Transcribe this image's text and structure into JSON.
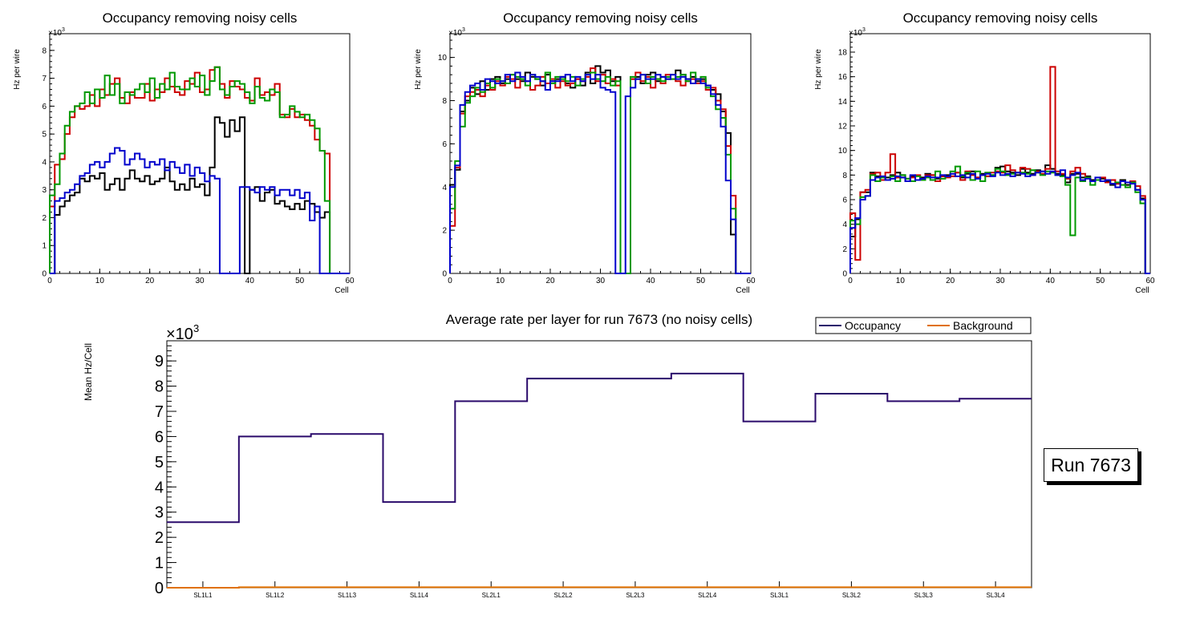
{
  "run_label": "Run 7673",
  "chart_data": [
    {
      "type": "histogram",
      "title": "Occupancy removing noisy cells",
      "xlabel": "Cell",
      "ylabel": "Hz per wire",
      "exponent": "×10^3",
      "exp_base": "×10",
      "exp_power": "3",
      "xlim": [
        0,
        60
      ],
      "ylim": [
        0,
        8.6
      ],
      "xticks": [
        0,
        10,
        20,
        30,
        40,
        50,
        60
      ],
      "yticks": [
        0,
        1,
        2,
        3,
        4,
        5,
        6,
        7,
        8
      ],
      "bin_width": 1,
      "series": [
        {
          "name": "layer1",
          "color": "#000000",
          "values": [
            0,
            2.1,
            2.4,
            2.6,
            2.8,
            2.9,
            3.4,
            3.3,
            3.5,
            3.4,
            3.6,
            3.0,
            3.2,
            3.4,
            3.0,
            3.4,
            3.7,
            3.4,
            3.3,
            3.5,
            3.2,
            3.3,
            3.4,
            3.8,
            3.3,
            3.0,
            3.2,
            3.0,
            3.4,
            3.1,
            3.2,
            2.8,
            3.8,
            5.6,
            5.4,
            4.9,
            5.5,
            5.1,
            5.6,
            0,
            3.0,
            3.1,
            2.6,
            2.9,
            3.0,
            2.5,
            2.6,
            2.4,
            2.3,
            2.5,
            2.3,
            2.6,
            2.5,
            2.2,
            2.0,
            2.2,
            0,
            0,
            0,
            0
          ]
        },
        {
          "name": "layer2",
          "color": "#cc0000",
          "values": [
            2.4,
            3.9,
            4.1,
            5.0,
            5.6,
            6.0,
            5.9,
            6.0,
            6.4,
            6.0,
            6.6,
            6.4,
            6.8,
            7.0,
            6.3,
            6.1,
            6.5,
            6.3,
            6.3,
            6.8,
            6.2,
            6.6,
            6.5,
            7.0,
            6.7,
            6.5,
            6.4,
            6.9,
            6.8,
            7.2,
            6.5,
            6.6,
            7.3,
            7.4,
            6.8,
            6.3,
            6.9,
            6.7,
            6.6,
            6.3,
            6.2,
            7.0,
            6.4,
            6.5,
            6.4,
            6.8,
            5.7,
            5.6,
            5.9,
            5.6,
            5.7,
            5.5,
            5.3,
            4.8,
            4.4,
            4.3,
            0,
            0,
            0,
            0
          ]
        },
        {
          "name": "layer3",
          "color": "#009900",
          "values": [
            2.8,
            3.2,
            4.3,
            5.3,
            5.8,
            6.0,
            6.1,
            6.5,
            6.1,
            6.6,
            6.3,
            7.1,
            6.4,
            6.8,
            6.1,
            6.5,
            6.4,
            6.6,
            6.8,
            6.5,
            7.0,
            6.3,
            6.8,
            6.6,
            7.2,
            6.7,
            6.6,
            6.6,
            7.0,
            6.7,
            7.1,
            6.4,
            6.9,
            7.4,
            6.6,
            6.4,
            6.7,
            6.9,
            6.8,
            6.5,
            6.1,
            6.7,
            6.3,
            6.2,
            6.6,
            6.5,
            5.6,
            5.7,
            6.0,
            5.8,
            5.6,
            5.7,
            5.5,
            5.2,
            4.4,
            2.6,
            0,
            0,
            0,
            0
          ]
        },
        {
          "name": "layer4",
          "color": "#0000cc",
          "values": [
            0,
            2.6,
            2.7,
            2.9,
            3.0,
            3.2,
            3.5,
            3.6,
            3.9,
            4.0,
            3.8,
            4.0,
            4.3,
            4.5,
            4.4,
            3.9,
            4.1,
            4.3,
            4.1,
            3.8,
            4.0,
            3.9,
            4.1,
            3.7,
            4.0,
            3.8,
            3.6,
            3.9,
            3.5,
            3.8,
            3.6,
            3.3,
            3.5,
            3.4,
            0,
            0,
            0,
            0,
            3.1,
            3.1,
            3.0,
            2.9,
            3.1,
            3.0,
            3.1,
            2.8,
            3.0,
            3.0,
            2.8,
            3.0,
            2.7,
            2.9,
            1.9,
            2.4,
            0,
            0,
            0,
            0,
            0,
            0
          ]
        }
      ]
    },
    {
      "type": "histogram",
      "title": "Occupancy removing noisy cells",
      "xlabel": "Cell",
      "ylabel": "Hz per wire",
      "exponent": "×10^3",
      "exp_base": "×10",
      "exp_power": "3",
      "xlim": [
        0,
        60
      ],
      "ylim": [
        0,
        11.1
      ],
      "xticks": [
        0,
        10,
        20,
        30,
        40,
        50,
        60
      ],
      "yticks": [
        0,
        2,
        4,
        6,
        8,
        10
      ],
      "bin_width": 1,
      "series": [
        {
          "name": "layer1",
          "color": "#000000",
          "values": [
            4.1,
            4.8,
            7.5,
            8.0,
            8.6,
            8.3,
            8.9,
            8.5,
            9.0,
            9.1,
            8.8,
            9.0,
            9.2,
            9.0,
            8.9,
            9.3,
            9.1,
            9.0,
            8.7,
            9.2,
            8.9,
            9.0,
            9.1,
            8.8,
            8.6,
            9.0,
            8.7,
            9.3,
            8.8,
            9.6,
            9.3,
            9.4,
            8.9,
            9.1,
            0,
            0,
            9.0,
            9.1,
            8.8,
            9.2,
            9.3,
            8.9,
            9.1,
            9.0,
            9.2,
            9.4,
            9.2,
            9.0,
            9.1,
            8.9,
            9.0,
            8.7,
            8.5,
            8.3,
            7.5,
            6.5,
            1.8,
            0,
            0,
            0
          ]
        },
        {
          "name": "layer2",
          "color": "#cc0000",
          "values": [
            2.2,
            4.9,
            7.4,
            8.2,
            8.4,
            8.5,
            8.2,
            8.7,
            8.5,
            8.9,
            8.7,
            9.1,
            9.0,
            8.6,
            9.0,
            8.9,
            8.5,
            8.7,
            9.1,
            8.8,
            9.0,
            8.6,
            8.9,
            8.7,
            8.8,
            9.0,
            8.9,
            9.1,
            9.5,
            8.9,
            9.2,
            8.8,
            9.0,
            8.7,
            0,
            0,
            9.0,
            9.3,
            8.9,
            9.1,
            8.6,
            9.0,
            8.8,
            9.2,
            9.0,
            8.9,
            8.7,
            8.9,
            9.0,
            8.8,
            8.9,
            8.5,
            8.6,
            8.0,
            7.6,
            5.9,
            3.6,
            0,
            0,
            0
          ]
        },
        {
          "name": "layer3",
          "color": "#009900",
          "values": [
            3.0,
            5.2,
            6.8,
            7.9,
            8.2,
            8.6,
            8.4,
            8.8,
            8.6,
            9.0,
            8.9,
            8.8,
            9.2,
            9.1,
            9.0,
            8.7,
            9.2,
            9.0,
            8.9,
            9.3,
            8.8,
            9.1,
            9.0,
            8.9,
            9.1,
            8.7,
            9.0,
            9.2,
            9.3,
            9.0,
            8.9,
            9.1,
            8.7,
            8.9,
            0,
            0,
            9.1,
            9.0,
            9.2,
            8.8,
            9.1,
            9.0,
            8.9,
            9.1,
            9.0,
            9.1,
            9.2,
            8.9,
            9.3,
            9.0,
            9.1,
            8.6,
            8.2,
            7.6,
            7.2,
            5.5,
            3.0,
            0,
            0,
            0
          ]
        },
        {
          "name": "layer4",
          "color": "#0000cc",
          "values": [
            4.0,
            5.0,
            7.8,
            8.4,
            8.7,
            8.8,
            8.5,
            9.0,
            8.9,
            8.8,
            8.9,
            9.2,
            8.9,
            9.3,
            9.1,
            8.9,
            9.2,
            9.1,
            8.9,
            8.5,
            8.9,
            8.9,
            9.1,
            9.2,
            8.9,
            9.1,
            8.9,
            9.2,
            9.0,
            9.2,
            8.6,
            8.5,
            8.4,
            0,
            0,
            8.2,
            8.6,
            9.0,
            9.2,
            9.0,
            9.0,
            9.2,
            9.1,
            9.0,
            9.2,
            9.0,
            9.1,
            9.0,
            8.8,
            9.0,
            8.8,
            8.7,
            8.3,
            7.8,
            6.8,
            4.3,
            2.5,
            0,
            0,
            0
          ]
        }
      ]
    },
    {
      "type": "histogram",
      "title": "Occupancy removing noisy cells",
      "xlabel": "Cell",
      "ylabel": "Hz per wire",
      "exponent": "×10^3",
      "exp_base": "×10",
      "exp_power": "3",
      "xlim": [
        0,
        60
      ],
      "ylim": [
        0,
        19.5
      ],
      "xticks": [
        0,
        10,
        20,
        30,
        40,
        50,
        60
      ],
      "yticks": [
        0,
        2,
        4,
        6,
        8,
        10,
        12,
        14,
        16,
        18
      ],
      "bin_width": 1,
      "series": [
        {
          "name": "layer1",
          "color": "#000000",
          "values": [
            3.0,
            4.4,
            6.6,
            6.6,
            8.2,
            7.9,
            7.6,
            7.8,
            8.0,
            8.2,
            8.0,
            7.7,
            7.9,
            7.6,
            7.8,
            8.1,
            8.0,
            7.7,
            7.9,
            8.0,
            7.9,
            8.2,
            7.8,
            8.1,
            8.3,
            7.8,
            8.1,
            7.9,
            8.0,
            8.6,
            8.7,
            8.3,
            8.2,
            8.0,
            8.5,
            8.2,
            8.1,
            8.4,
            8.3,
            8.8,
            8.5,
            8.1,
            8.0,
            7.4,
            8.1,
            8.1,
            7.8,
            7.9,
            7.6,
            7.6,
            7.7,
            7.5,
            7.2,
            7.3,
            7.6,
            7.2,
            7.4,
            6.8,
            6.1,
            0
          ]
        },
        {
          "name": "layer2",
          "color": "#cc0000",
          "values": [
            4.9,
            1.1,
            6.6,
            6.8,
            8.1,
            8.2,
            7.6,
            8.2,
            9.7,
            7.8,
            7.8,
            7.5,
            7.8,
            8.0,
            7.7,
            8.0,
            8.0,
            7.5,
            7.9,
            7.8,
            7.9,
            8.2,
            7.6,
            8.3,
            8.0,
            7.8,
            8.0,
            7.9,
            8.2,
            8.3,
            8.2,
            8.8,
            8.4,
            8.2,
            8.6,
            8.5,
            8.0,
            8.3,
            8.1,
            8.5,
            16.8,
            8.3,
            8.1,
            7.7,
            8.3,
            8.6,
            8.1,
            7.8,
            7.5,
            7.6,
            7.8,
            7.4,
            7.6,
            7.3,
            7.5,
            7.4,
            7.5,
            7.1,
            6.3,
            0
          ]
        },
        {
          "name": "layer3",
          "color": "#009900",
          "values": [
            4.3,
            4.0,
            6.2,
            6.3,
            8.0,
            7.5,
            7.8,
            7.6,
            7.9,
            7.5,
            8.0,
            7.7,
            7.5,
            7.9,
            7.6,
            7.8,
            7.6,
            8.3,
            7.7,
            7.9,
            8.3,
            8.7,
            7.9,
            8.2,
            7.6,
            8.3,
            7.5,
            8.2,
            8.0,
            8.5,
            8.3,
            8.0,
            8.1,
            8.2,
            8.2,
            8.1,
            8.4,
            8.2,
            8.0,
            8.3,
            8.2,
            8.0,
            7.9,
            7.2,
            3.1,
            7.8,
            7.5,
            7.8,
            7.2,
            7.6,
            7.5,
            7.6,
            7.3,
            7.4,
            7.2,
            7.0,
            7.4,
            6.6,
            5.7,
            0
          ]
        },
        {
          "name": "layer4",
          "color": "#0000cc",
          "values": [
            3.7,
            4.5,
            6.0,
            6.3,
            7.6,
            7.8,
            7.9,
            7.6,
            7.7,
            7.9,
            7.8,
            7.5,
            8.0,
            7.6,
            7.7,
            7.9,
            7.8,
            7.8,
            8.0,
            7.9,
            8.1,
            7.9,
            8.0,
            7.8,
            8.1,
            7.7,
            8.0,
            8.1,
            7.9,
            8.2,
            8.0,
            8.1,
            7.9,
            8.2,
            8.1,
            7.9,
            8.0,
            8.2,
            8.3,
            8.1,
            8.3,
            8.0,
            8.4,
            7.8,
            8.0,
            8.2,
            7.6,
            7.7,
            7.5,
            7.8,
            7.5,
            7.6,
            7.3,
            7.0,
            7.5,
            7.4,
            7.3,
            6.8,
            6.0,
            0
          ]
        }
      ]
    },
    {
      "type": "step",
      "title": "Average rate per layer for run 7673 (no noisy cells)",
      "xlabel": "",
      "ylabel": "Mean Hz/Cell",
      "exponent": "×10^3",
      "exp_base": "×10",
      "exp_power": "3",
      "ylim": [
        0,
        9.8
      ],
      "yticks": [
        0,
        1,
        2,
        3,
        4,
        5,
        6,
        7,
        8,
        9
      ],
      "categories": [
        "SL1L1",
        "SL1L2",
        "SL1L3",
        "SL1L4",
        "SL2L1",
        "SL2L2",
        "SL2L3",
        "SL2L4",
        "SL3L1",
        "SL3L2",
        "SL3L3",
        "SL3L4"
      ],
      "legend": {
        "position": "top-right",
        "entries": [
          "Occupancy",
          "Background"
        ]
      },
      "series": [
        {
          "name": "Occupancy",
          "color": "#2a0a6b",
          "values": [
            2.6,
            6.0,
            6.1,
            3.4,
            7.4,
            8.3,
            8.3,
            8.5,
            6.6,
            7.7,
            7.4,
            7.5
          ]
        },
        {
          "name": "Background",
          "color": "#e07000",
          "values": [
            0.0,
            0.02,
            0.02,
            0.02,
            0.02,
            0.02,
            0.02,
            0.02,
            0.02,
            0.02,
            0.02,
            0.02
          ]
        }
      ]
    }
  ]
}
